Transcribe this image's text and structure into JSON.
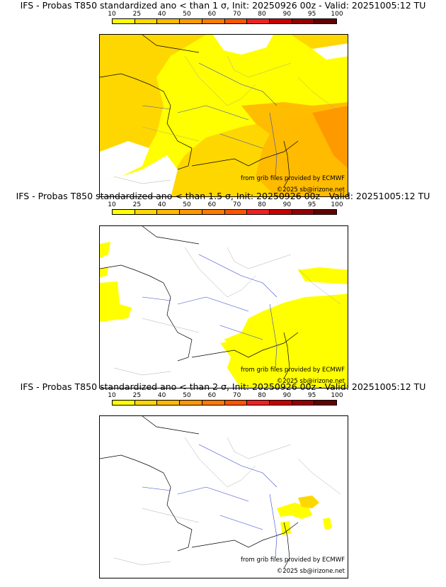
{
  "colorbar": {
    "ticks": [
      "10",
      "25",
      "40",
      "50",
      "60",
      "70",
      "80",
      "90",
      "95",
      "100"
    ],
    "colors": [
      "#ffff00",
      "#ffd700",
      "#ffb900",
      "#ff9900",
      "#ff7a00",
      "#ff5500",
      "#ee2222",
      "#c80000",
      "#960000",
      "#640000"
    ]
  },
  "panels": [
    {
      "title": "IFS - Probas T850  standardized ano < than 1 σ, Init: 20250926 00z - Valid: 20251005:12 TU",
      "credit_source": "from grib files provided by ECMWF",
      "credit_site": "©2025 sb@irizone.net"
    },
    {
      "title": "IFS - Probas T850  standardized ano < than 1.5 σ, Init: 20250926 00z - Valid: 20251005:12 TU",
      "credit_source": "from grib files provided by ECMWF",
      "credit_site": "©2025 sb@irizone.net"
    },
    {
      "title": "IFS - Probas T850  standardized ano < than 2 σ, Init: 20250926 00z - Valid: 20251005:12 TU",
      "credit_source": "from grib files provided by ECMWF",
      "credit_site": "©2025 sb@irizone.net"
    }
  ]
}
